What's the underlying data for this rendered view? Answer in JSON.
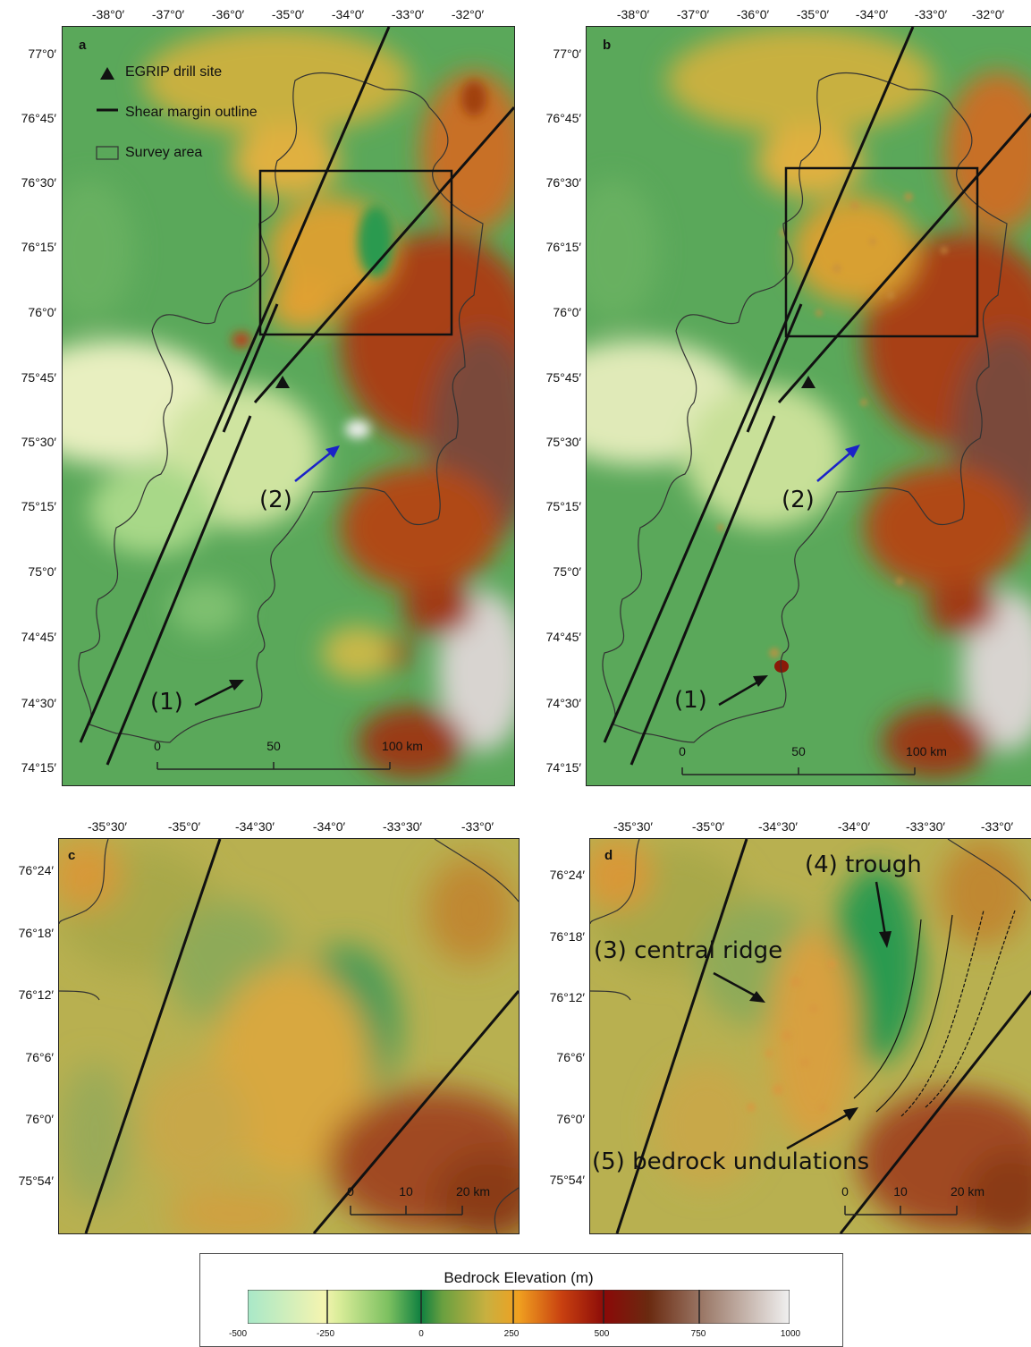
{
  "panels": {
    "a": {
      "letter": "a",
      "lon_labels": [
        "-38°0′",
        "-37°0′",
        "-36°0′",
        "-35°0′",
        "-34°0′",
        "-33°0′",
        "-32°0′"
      ],
      "lat_labels": [
        "77°0′",
        "76°45′",
        "76°30′",
        "76°15′",
        "76°0′",
        "75°45′",
        "75°30′",
        "75°15′",
        "75°0′",
        "74°45′",
        "74°30′",
        "74°15′"
      ],
      "legend": {
        "drill_site": "EGRIP drill site",
        "shear_margin": "Shear margin outline",
        "survey_area": "Survey area"
      },
      "annotations": [
        "(1)",
        "(2)"
      ],
      "scale": [
        "0",
        "50",
        "100 km"
      ]
    },
    "b": {
      "letter": "b",
      "lon_labels": [
        "-38°0′",
        "-37°0′",
        "-36°0′",
        "-35°0′",
        "-34°0′",
        "-33°0′",
        "-32°0′"
      ],
      "lat_labels": [
        "77°0′",
        "76°45′",
        "76°30′",
        "76°15′",
        "76°0′",
        "75°45′",
        "75°30′",
        "75°15′",
        "75°0′",
        "74°45′",
        "74°30′",
        "74°15′"
      ],
      "annotations": [
        "(1)",
        "(2)"
      ],
      "scale": [
        "0",
        "50",
        "100 km"
      ]
    },
    "c": {
      "letter": "c",
      "lon_labels": [
        "-35°30′",
        "-35°0′",
        "-34°30′",
        "-34°0′",
        "-33°30′",
        "-33°0′"
      ],
      "lat_labels": [
        "76°24′",
        "76°18′",
        "76°12′",
        "76°6′",
        "76°0′",
        "75°54′"
      ],
      "scale": [
        "0",
        "10",
        "20 km"
      ]
    },
    "d": {
      "letter": "d",
      "lon_labels": [
        "-35°30′",
        "-35°0′",
        "-34°30′",
        "-34°0′",
        "-33°30′",
        "-33°0′"
      ],
      "lat_labels": [
        "76°24′",
        "76°18′",
        "76°12′",
        "76°6′",
        "76°0′",
        "75°54′"
      ],
      "annotations": [
        "(4) trough",
        "(3) central ridge",
        "(5) bedrock undulations"
      ],
      "scale": [
        "0",
        "10",
        "20 km"
      ]
    }
  },
  "colorbar": {
    "title": "Bedrock Elevation (m)",
    "ticks": [
      "-500",
      "-250",
      "0",
      "250",
      "500",
      "750",
      "1000"
    ],
    "colors": [
      "#a8e8c8",
      "#f4f4b0",
      "#8cc860",
      "#0f8040",
      "#c8b040",
      "#f0a020",
      "#c84010",
      "#700808",
      "#6a3010",
      "#a08070",
      "#f0f0f0"
    ]
  },
  "colors": {
    "shear_margin": "#111111",
    "survey_outline": "#333333",
    "arrow_blue": "#1a22c8",
    "arrow_black": "#111111"
  }
}
